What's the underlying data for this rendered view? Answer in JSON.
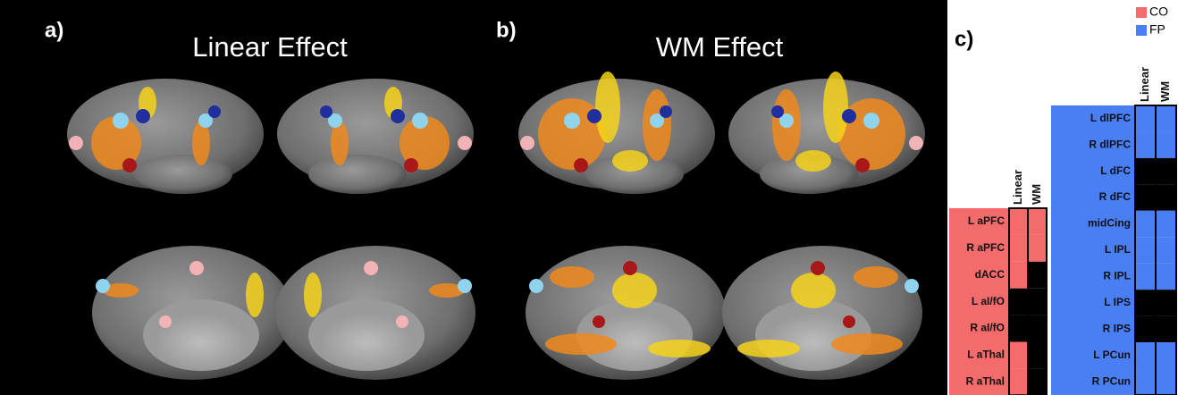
{
  "panels": [
    {
      "label": "a)",
      "title": "Linear Effect"
    },
    {
      "label": "b)",
      "title": "WM Effect"
    }
  ],
  "panel_c": {
    "label": "c)",
    "legend": [
      {
        "name": "CO",
        "color": "#f36b6b"
      },
      {
        "name": "FP",
        "color": "#4a7ef5"
      }
    ],
    "columns": [
      "Linear",
      "WM"
    ],
    "groups": [
      {
        "network": "CO",
        "rows": [
          {
            "region": "L aPFC",
            "cells": [
              true,
              true
            ]
          },
          {
            "region": "R aPFC",
            "cells": [
              true,
              true
            ]
          },
          {
            "region": "dACC",
            "cells": [
              true,
              false
            ]
          },
          {
            "region": "L aI/fO",
            "cells": [
              false,
              false
            ]
          },
          {
            "region": "R aI/fO",
            "cells": [
              false,
              false
            ]
          },
          {
            "region": "L aThal",
            "cells": [
              true,
              false
            ]
          },
          {
            "region": "R aThal",
            "cells": [
              true,
              false
            ]
          }
        ]
      },
      {
        "network": "FP",
        "rows": [
          {
            "region": "L dlPFC",
            "cells": [
              true,
              true
            ]
          },
          {
            "region": "R dlPFC",
            "cells": [
              true,
              true
            ]
          },
          {
            "region": "L dFC",
            "cells": [
              false,
              false
            ]
          },
          {
            "region": "R dFC",
            "cells": [
              false,
              false
            ]
          },
          {
            "region": "midCing",
            "cells": [
              true,
              true
            ]
          },
          {
            "region": "L IPL",
            "cells": [
              true,
              true
            ]
          },
          {
            "region": "R IPL",
            "cells": [
              true,
              true
            ]
          },
          {
            "region": "L IPS",
            "cells": [
              false,
              false
            ]
          },
          {
            "region": "R IPS",
            "cells": [
              false,
              false
            ]
          },
          {
            "region": "L PCun",
            "cells": [
              true,
              true
            ]
          },
          {
            "region": "R PCun",
            "cells": [
              true,
              true
            ]
          }
        ]
      }
    ]
  }
}
